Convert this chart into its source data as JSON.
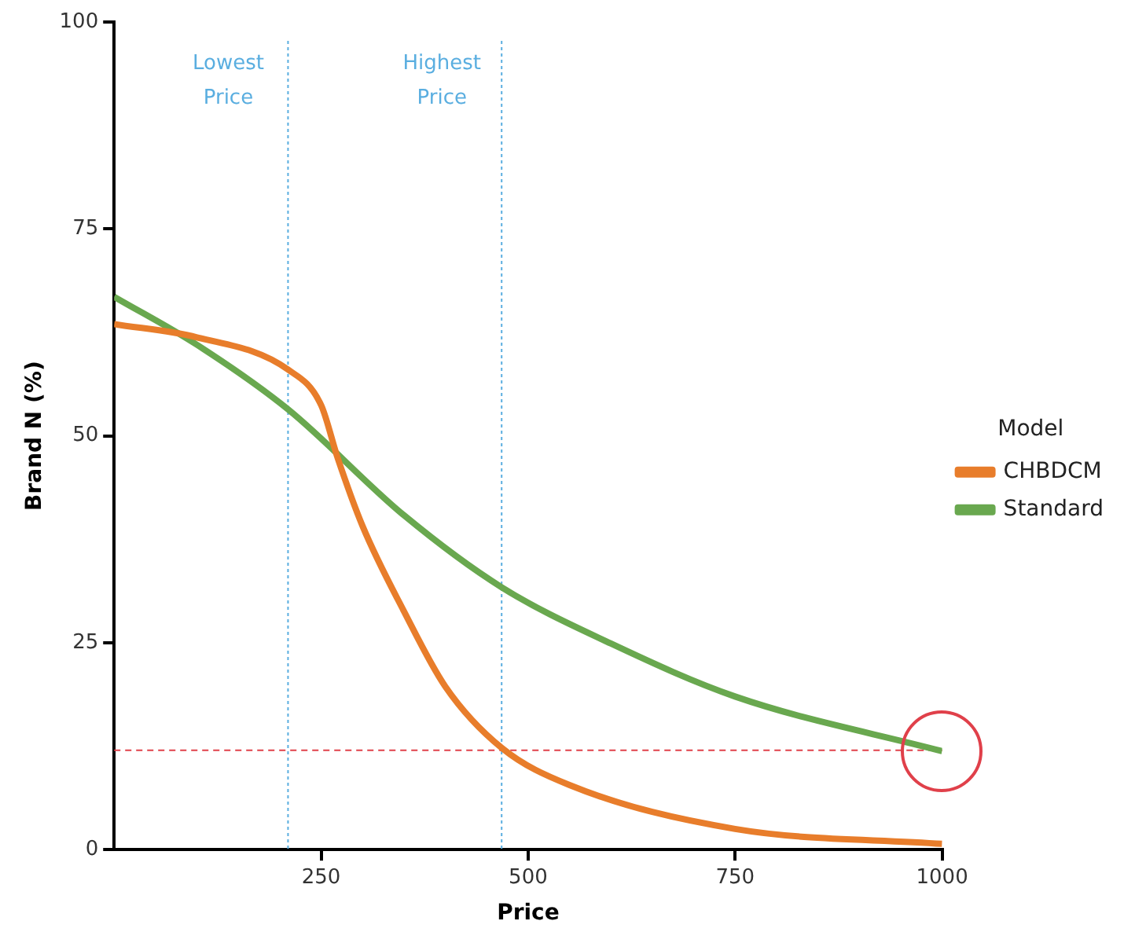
{
  "chart_data": {
    "type": "line",
    "xlabel": "Price",
    "ylabel": "Brand N (%)",
    "legend_title": "Model",
    "legend": "right",
    "grid": false,
    "marker": "none",
    "line_style": "solid",
    "xlim": [
      0,
      1000
    ],
    "xticks": [
      250,
      500,
      750,
      1000
    ],
    "ylim": [
      0,
      100
    ],
    "yticks": [
      0,
      25,
      50,
      75,
      100
    ],
    "series": [
      {
        "name": "CHBDCM",
        "color": "#e87d2b",
        "x": [
          0,
          100,
          210,
          250,
          270,
          300,
          350,
          400,
          468,
          550,
          750,
          1000
        ],
        "values": [
          63.5,
          61.9,
          58,
          53.7,
          47.3,
          39.1,
          28.8,
          19.7,
          12.3,
          7.8,
          2.5,
          0.7
        ]
      },
      {
        "name": "Standard",
        "color": "#69a84f",
        "x": [
          0,
          100,
          210,
          350,
          468,
          600,
          750,
          1000
        ],
        "values": [
          66.8,
          61,
          53.2,
          40.4,
          31.7,
          24.9,
          18.5,
          11.9
        ]
      }
    ],
    "ref_lines": [
      {
        "axis": "x",
        "value": 210,
        "label": "Lowest Price",
        "color": "#5aaee0",
        "line_style": "dotted"
      },
      {
        "axis": "x",
        "value": 468,
        "label": "Highest Price",
        "color": "#5aaee0",
        "line_style": "dotted"
      },
      {
        "axis": "y",
        "value": 12,
        "color": "#e0404a",
        "line_style": "dashed"
      }
    ]
  }
}
